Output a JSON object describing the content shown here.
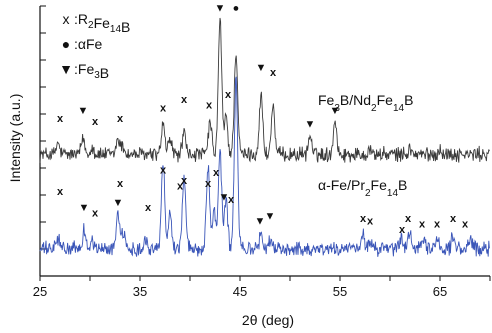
{
  "chart_data": {
    "type": "line",
    "xlabel": "2θ (deg)",
    "ylabel": "Intensity (a.u.)",
    "xlim": [
      25,
      70
    ],
    "ylim": [
      0,
      100
    ],
    "x_ticks": [
      25,
      35,
      45,
      55,
      65
    ],
    "grid": false,
    "legend": {
      "placement": "top-left",
      "items": [
        {
          "symbol": "x",
          "text_main": ":R",
          "sub1": "2",
          "mid": "Fe",
          "sub2": "14",
          "end": "B",
          "text": ":R2Fe14B"
        },
        {
          "symbol": "●",
          "text_main": ":αFe",
          "text": ":αFe"
        },
        {
          "symbol": "▼",
          "text_main": ":Fe",
          "sub1": "3",
          "end": "B",
          "text": ":Fe3B"
        }
      ]
    },
    "series": [
      {
        "name": "Fe3B/Nd2Fe14B",
        "label_parts": [
          "Fe",
          "3",
          "B/Nd",
          "2",
          "Fe",
          "14",
          "B"
        ],
        "color": "#3a3a3a",
        "baseline": 45,
        "peaks": [
          [
            26.8,
            4
          ],
          [
            29.3,
            6
          ],
          [
            30.2,
            3
          ],
          [
            32.8,
            6
          ],
          [
            33.3,
            3
          ],
          [
            37.3,
            11
          ],
          [
            38.0,
            6
          ],
          [
            39.4,
            8
          ],
          [
            42.0,
            12
          ],
          [
            43.0,
            50
          ],
          [
            43.6,
            14
          ],
          [
            44.6,
            38
          ],
          [
            47.1,
            22
          ],
          [
            48.3,
            18
          ],
          [
            52.0,
            7
          ],
          [
            54.5,
            13
          ],
          [
            58.0,
            2
          ],
          [
            62.0,
            2
          ],
          [
            65.0,
            2
          ]
        ],
        "markers": [
          {
            "x": 27.0,
            "y": 57,
            "s": "x"
          },
          {
            "x": 29.3,
            "y": 60,
            "s": "▼"
          },
          {
            "x": 30.5,
            "y": 56,
            "s": "x"
          },
          {
            "x": 33.0,
            "y": 57,
            "s": "x"
          },
          {
            "x": 37.3,
            "y": 61,
            "s": "x"
          },
          {
            "x": 39.4,
            "y": 64,
            "s": "x"
          },
          {
            "x": 41.9,
            "y": 62,
            "s": "x"
          },
          {
            "x": 43.0,
            "y": 98,
            "s": "▼"
          },
          {
            "x": 43.8,
            "y": 66,
            "s": "x"
          },
          {
            "x": 44.6,
            "y": 98,
            "s": "●"
          },
          {
            "x": 47.1,
            "y": 76,
            "s": "▼"
          },
          {
            "x": 48.3,
            "y": 74,
            "s": "x"
          },
          {
            "x": 52.0,
            "y": 55,
            "s": "▼"
          },
          {
            "x": 54.5,
            "y": 60,
            "s": "▼"
          }
        ]
      },
      {
        "name": "α-Fe/Pr2Fe14B",
        "label_parts": [
          "α-Fe/Pr",
          "2",
          "Fe",
          "14",
          "B"
        ],
        "color": "#3a55b8",
        "baseline": 10,
        "peaks": [
          [
            26.8,
            4
          ],
          [
            29.4,
            7
          ],
          [
            30.2,
            3
          ],
          [
            32.8,
            14
          ],
          [
            33.3,
            6
          ],
          [
            35.5,
            4
          ],
          [
            37.3,
            32
          ],
          [
            38.0,
            14
          ],
          [
            39.4,
            27
          ],
          [
            41.8,
            30
          ],
          [
            42.4,
            15
          ],
          [
            43.0,
            36
          ],
          [
            43.6,
            18
          ],
          [
            44.6,
            62
          ],
          [
            47.1,
            5
          ],
          [
            48.0,
            3
          ],
          [
            57.3,
            5
          ],
          [
            58.0,
            3
          ],
          [
            61.2,
            4
          ],
          [
            62.0,
            6
          ],
          [
            63.3,
            3
          ],
          [
            64.7,
            4
          ],
          [
            66.3,
            5
          ],
          [
            68.0,
            3
          ]
        ],
        "markers": [
          {
            "x": 27.0,
            "y": 30,
            "s": "x"
          },
          {
            "x": 29.4,
            "y": 24,
            "s": "▼"
          },
          {
            "x": 30.5,
            "y": 22,
            "s": "x"
          },
          {
            "x": 32.8,
            "y": 26,
            "s": "▼"
          },
          {
            "x": 33.0,
            "y": 33,
            "s": "x"
          },
          {
            "x": 35.8,
            "y": 24,
            "s": "x"
          },
          {
            "x": 37.3,
            "y": 38,
            "s": "x"
          },
          {
            "x": 39.0,
            "y": 32,
            "s": "x"
          },
          {
            "x": 39.4,
            "y": 34,
            "s": "x"
          },
          {
            "x": 41.8,
            "y": 33,
            "s": "x"
          },
          {
            "x": 42.6,
            "y": 37,
            "s": "x"
          },
          {
            "x": 43.4,
            "y": 28,
            "s": "▼"
          },
          {
            "x": 44.1,
            "y": 27,
            "s": "x"
          },
          {
            "x": 47.0,
            "y": 19,
            "s": "▼"
          },
          {
            "x": 48.0,
            "y": 21,
            "s": "▼"
          },
          {
            "x": 57.3,
            "y": 20,
            "s": "x"
          },
          {
            "x": 58.0,
            "y": 19,
            "s": "x"
          },
          {
            "x": 61.2,
            "y": 16,
            "s": "x"
          },
          {
            "x": 61.8,
            "y": 20,
            "s": "x"
          },
          {
            "x": 63.2,
            "y": 18,
            "s": "x"
          },
          {
            "x": 64.7,
            "y": 18,
            "s": "x"
          },
          {
            "x": 66.3,
            "y": 20,
            "s": "x"
          },
          {
            "x": 67.5,
            "y": 18,
            "s": "x"
          }
        ]
      }
    ]
  }
}
